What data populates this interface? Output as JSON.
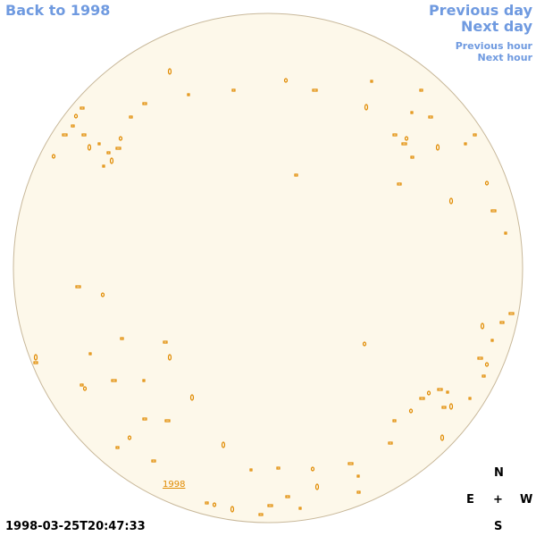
{
  "nav": {
    "back_year": "Back to 1998",
    "previous_day": "Previous day",
    "next_day": "Next day",
    "previous_hour": "Previous hour",
    "next_hour": "Next hour"
  },
  "disk_label": "1998",
  "compass": {
    "north": "N",
    "east": "E",
    "center": "+",
    "west": "W",
    "south": "S"
  },
  "timestamp": "1998-03-25T20:47:33"
}
